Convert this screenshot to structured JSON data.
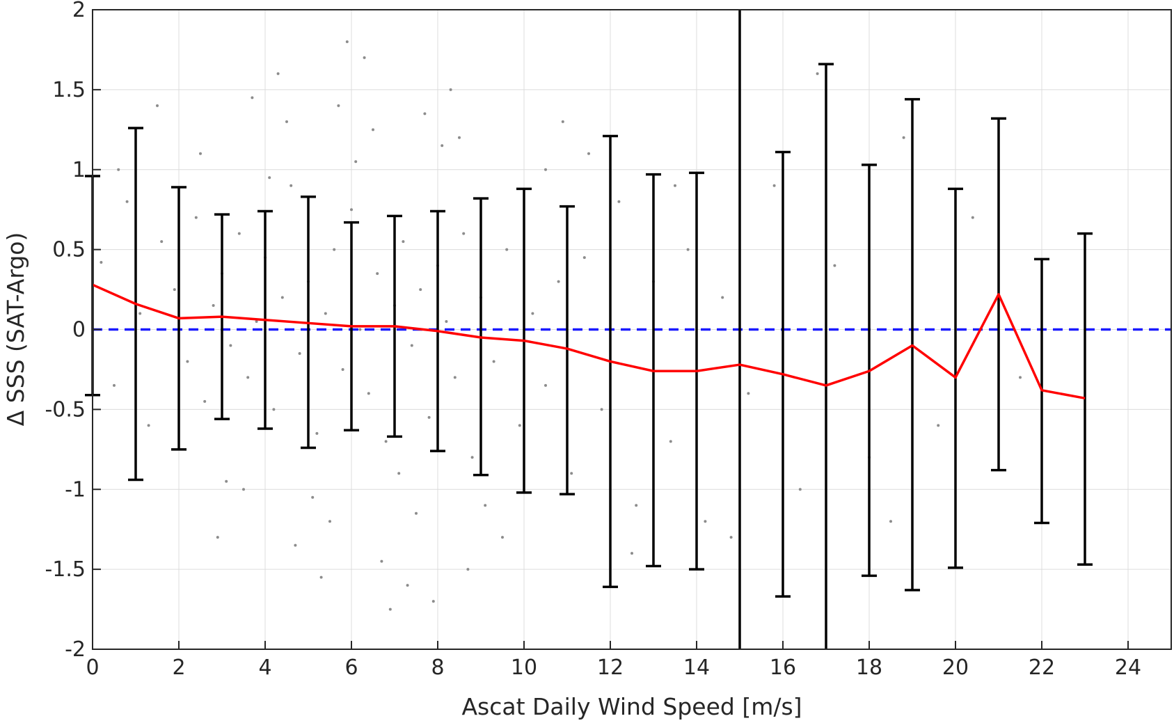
{
  "chart_data": {
    "type": "scatter",
    "xlabel": "Ascat Daily Wind Speed [m/s]",
    "ylabel": "Δ SSS (SAT-Argo)",
    "xlim": [
      0,
      25
    ],
    "ylim": [
      -2,
      2
    ],
    "xticks": [
      0,
      2,
      4,
      6,
      8,
      10,
      12,
      14,
      16,
      18,
      20,
      22,
      24
    ],
    "yticks": [
      -2,
      -1.5,
      -1,
      -0.5,
      0,
      0.5,
      1,
      1.5,
      2
    ],
    "grid": true,
    "reference_line": {
      "y": 0,
      "style": "dashed",
      "color": "#1a1aff"
    },
    "mean_line": {
      "color": "#ff0000",
      "x": [
        0,
        1,
        2,
        3,
        4,
        5,
        6,
        7,
        8,
        9,
        10,
        11,
        12,
        13,
        14,
        15,
        16,
        17,
        18,
        19,
        20,
        21,
        22,
        23
      ],
      "y": [
        0.28,
        0.16,
        0.07,
        0.08,
        0.06,
        0.04,
        0.02,
        0.02,
        -0.01,
        -0.05,
        -0.07,
        -0.12,
        -0.2,
        -0.26,
        -0.26,
        -0.22,
        -0.28,
        -0.35,
        -0.26,
        -0.1,
        -0.3,
        0.22,
        -0.38,
        -0.43
      ]
    },
    "error_bars": {
      "color": "#000000",
      "x": [
        0,
        1,
        2,
        3,
        4,
        5,
        6,
        7,
        8,
        9,
        10,
        11,
        12,
        13,
        14,
        15,
        16,
        17,
        18,
        19,
        20,
        21,
        22,
        23
      ],
      "lower": [
        -0.41,
        -0.94,
        -0.75,
        -0.56,
        -0.62,
        -0.74,
        -0.63,
        -0.67,
        -0.76,
        -0.91,
        -1.02,
        -1.03,
        -1.61,
        -1.48,
        -1.5,
        -2.0,
        -1.67,
        -2.0,
        -1.54,
        -1.63,
        -1.49,
        -0.88,
        -1.21,
        -1.47
      ],
      "upper": [
        0.96,
        1.26,
        0.89,
        0.72,
        0.74,
        0.83,
        0.67,
        0.71,
        0.74,
        0.82,
        0.88,
        0.77,
        1.21,
        0.97,
        0.98,
        2.0,
        1.11,
        1.66,
        1.03,
        1.44,
        0.88,
        1.32,
        0.44,
        0.6
      ]
    },
    "scatter_points": {
      "color": "#8c8c8c",
      "x": [
        0.2,
        0.5,
        0.8,
        1.1,
        1.3,
        1.6,
        1.9,
        2.2,
        2.4,
        2.6,
        2.8,
        3.0,
        3.2,
        3.4,
        3.6,
        3.8,
        4.0,
        4.2,
        4.4,
        4.6,
        4.8,
        5.0,
        5.2,
        5.4,
        5.6,
        5.8,
        6.0,
        6.2,
        6.4,
        6.6,
        6.8,
        7.0,
        7.2,
        7.4,
        7.6,
        7.8,
        8.0,
        8.2,
        8.4,
        8.6,
        8.8,
        9.0,
        9.3,
        9.6,
        9.9,
        10.2,
        10.5,
        10.8,
        11.1,
        11.4,
        11.8,
        12.2,
        12.6,
        13.0,
        13.4,
        13.8,
        14.2,
        14.6,
        15.2,
        15.8,
        16.4,
        17.2,
        18.0,
        18.8,
        19.6,
        20.4,
        21.5,
        2.5,
        3.5,
        4.5,
        5.5,
        6.5,
        7.5,
        8.5,
        9.5,
        10.5,
        3.1,
        4.1,
        5.1,
        6.1,
        7.1,
        8.1,
        9.1,
        3.7,
        4.7,
        5.7,
        6.7,
        7.7,
        8.7,
        4.3,
        5.3,
        6.3,
        7.3,
        8.3,
        5.9,
        6.9,
        7.9,
        1.5,
        11.5,
        12.5,
        13.5,
        2.9,
        10.9,
        16.8,
        18.5,
        0.6,
        14.8
      ],
      "y": [
        0.42,
        -0.35,
        0.8,
        0.1,
        -0.6,
        0.55,
        0.25,
        -0.2,
        0.7,
        -0.45,
        0.15,
        0.35,
        -0.1,
        0.6,
        -0.3,
        0.05,
        0.45,
        -0.5,
        0.2,
        0.9,
        -0.15,
        0.3,
        -0.65,
        0.1,
        0.5,
        -0.25,
        0.75,
        0.0,
        -0.4,
        0.35,
        -0.7,
        0.15,
        0.55,
        -0.1,
        0.25,
        -0.55,
        0.4,
        0.05,
        -0.3,
        0.6,
        -0.8,
        0.2,
        -0.2,
        0.5,
        -0.6,
        0.1,
        -0.35,
        0.3,
        -0.9,
        0.45,
        -0.5,
        0.8,
        -1.1,
        0.3,
        -0.7,
        0.5,
        -1.2,
        0.2,
        -0.4,
        0.9,
        -1.0,
        0.4,
        -0.8,
        1.2,
        -0.6,
        0.7,
        -0.3,
        1.1,
        -1.0,
        1.3,
        -1.2,
        1.25,
        -1.15,
        1.2,
        -1.3,
        1.0,
        -0.95,
        0.95,
        -1.05,
        1.05,
        -0.9,
        1.15,
        -1.1,
        1.45,
        -1.35,
        1.4,
        -1.45,
        1.35,
        -1.5,
        1.6,
        -1.55,
        1.7,
        -1.6,
        1.5,
        1.8,
        -1.75,
        -1.7,
        1.4,
        1.1,
        -1.4,
        0.9,
        -1.3,
        1.3,
        1.6,
        -1.2,
        1.0,
        -1.3
      ]
    }
  }
}
